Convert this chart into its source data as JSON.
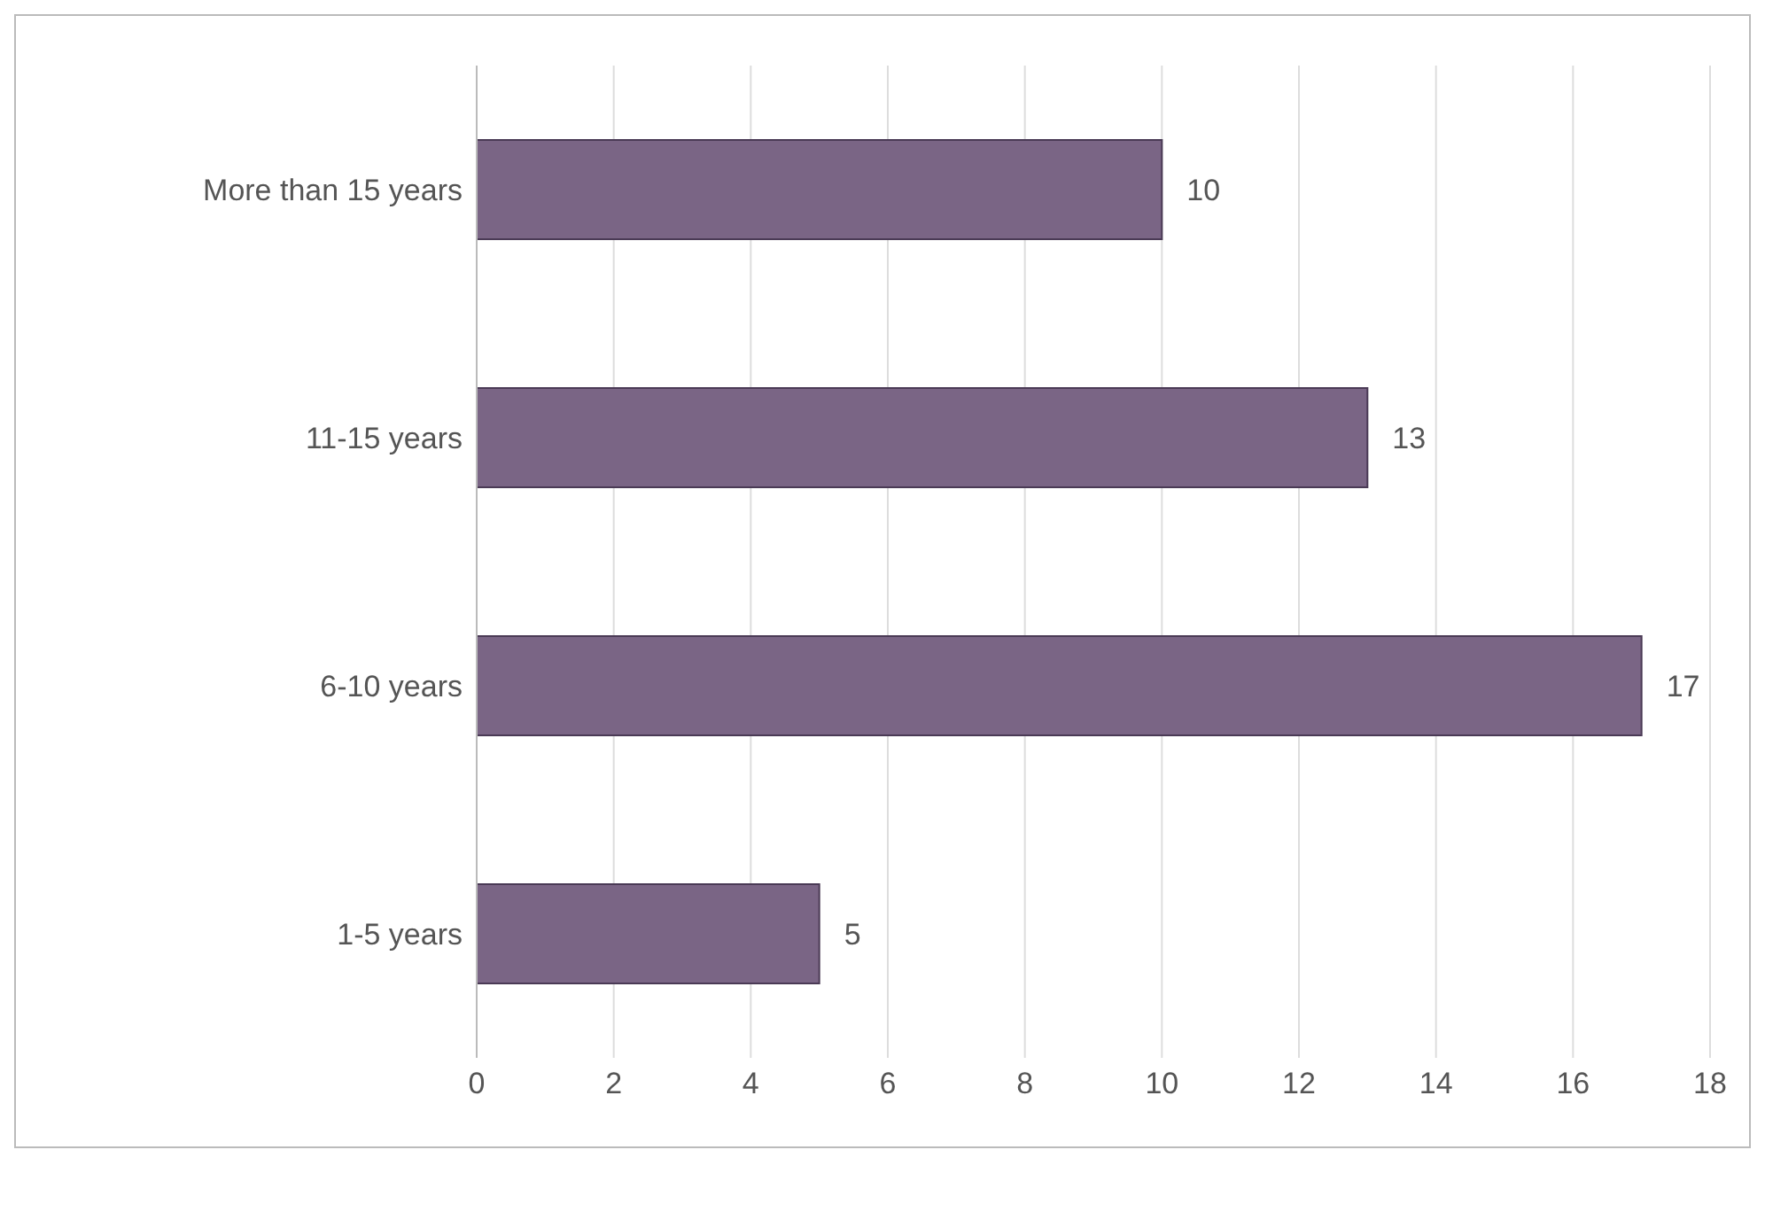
{
  "chart_data": {
    "type": "bar",
    "orientation": "horizontal",
    "categories": [
      "More than 15 years",
      "11-15 years",
      "6-10 years",
      "1-5 years"
    ],
    "values": [
      10,
      13,
      17,
      5
    ],
    "color": "#7a6585",
    "xlim": [
      0,
      18
    ],
    "xticks": [
      0,
      2,
      4,
      6,
      8,
      10,
      12,
      14,
      16,
      18
    ],
    "grid": "x",
    "data_labels": true,
    "legend": false
  }
}
